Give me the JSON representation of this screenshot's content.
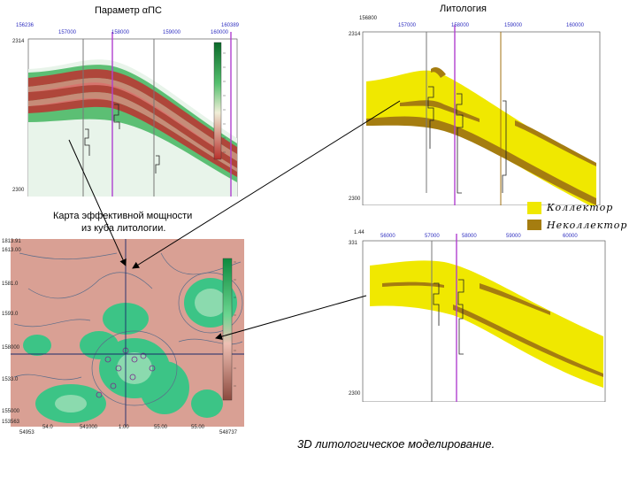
{
  "titles": {
    "param_ps": "Параметр αПС",
    "lithology": "Литология",
    "map_line1": "Карта эффективной мощности",
    "map_line2": "из куба литологии."
  },
  "legend": [
    {
      "label": "Коллектор",
      "color": "#f0e800"
    },
    {
      "label": "Неколлектор",
      "color": "#a57d10"
    }
  ],
  "caption": "3D литологическое моделирование.",
  "colors": {
    "red_band": "#b83a34",
    "green_bg": "#4db86a",
    "yellow": "#f0e800",
    "brown": "#a57d10",
    "map_bg": "#d9a094",
    "map_green": "#3cc486",
    "arrow": "#000000"
  },
  "axis_labels": {
    "ps_top": [
      "156236",
      "157000",
      "158000",
      "159000",
      "160000",
      "160389"
    ],
    "ps_left": [
      "2314",
      "2300"
    ],
    "lit_top": [
      "156800",
      "157000",
      "158000",
      "159000",
      "160000"
    ],
    "lit_left": [
      "2314",
      "2300"
    ],
    "lit2_top": [
      "1.44",
      "56000",
      "57000",
      "58000",
      "59000",
      "60000"
    ],
    "lit2_left": [
      "331",
      "2300"
    ],
    "map_left": [
      "1813.91",
      "1613.00",
      "1581.0",
      "1593.0",
      "158000",
      "1533.0",
      "155000",
      "153563"
    ],
    "map_bottom": [
      "54953",
      "54.0",
      "541000",
      "1.00",
      "55.00",
      "55.00",
      "548737"
    ]
  }
}
